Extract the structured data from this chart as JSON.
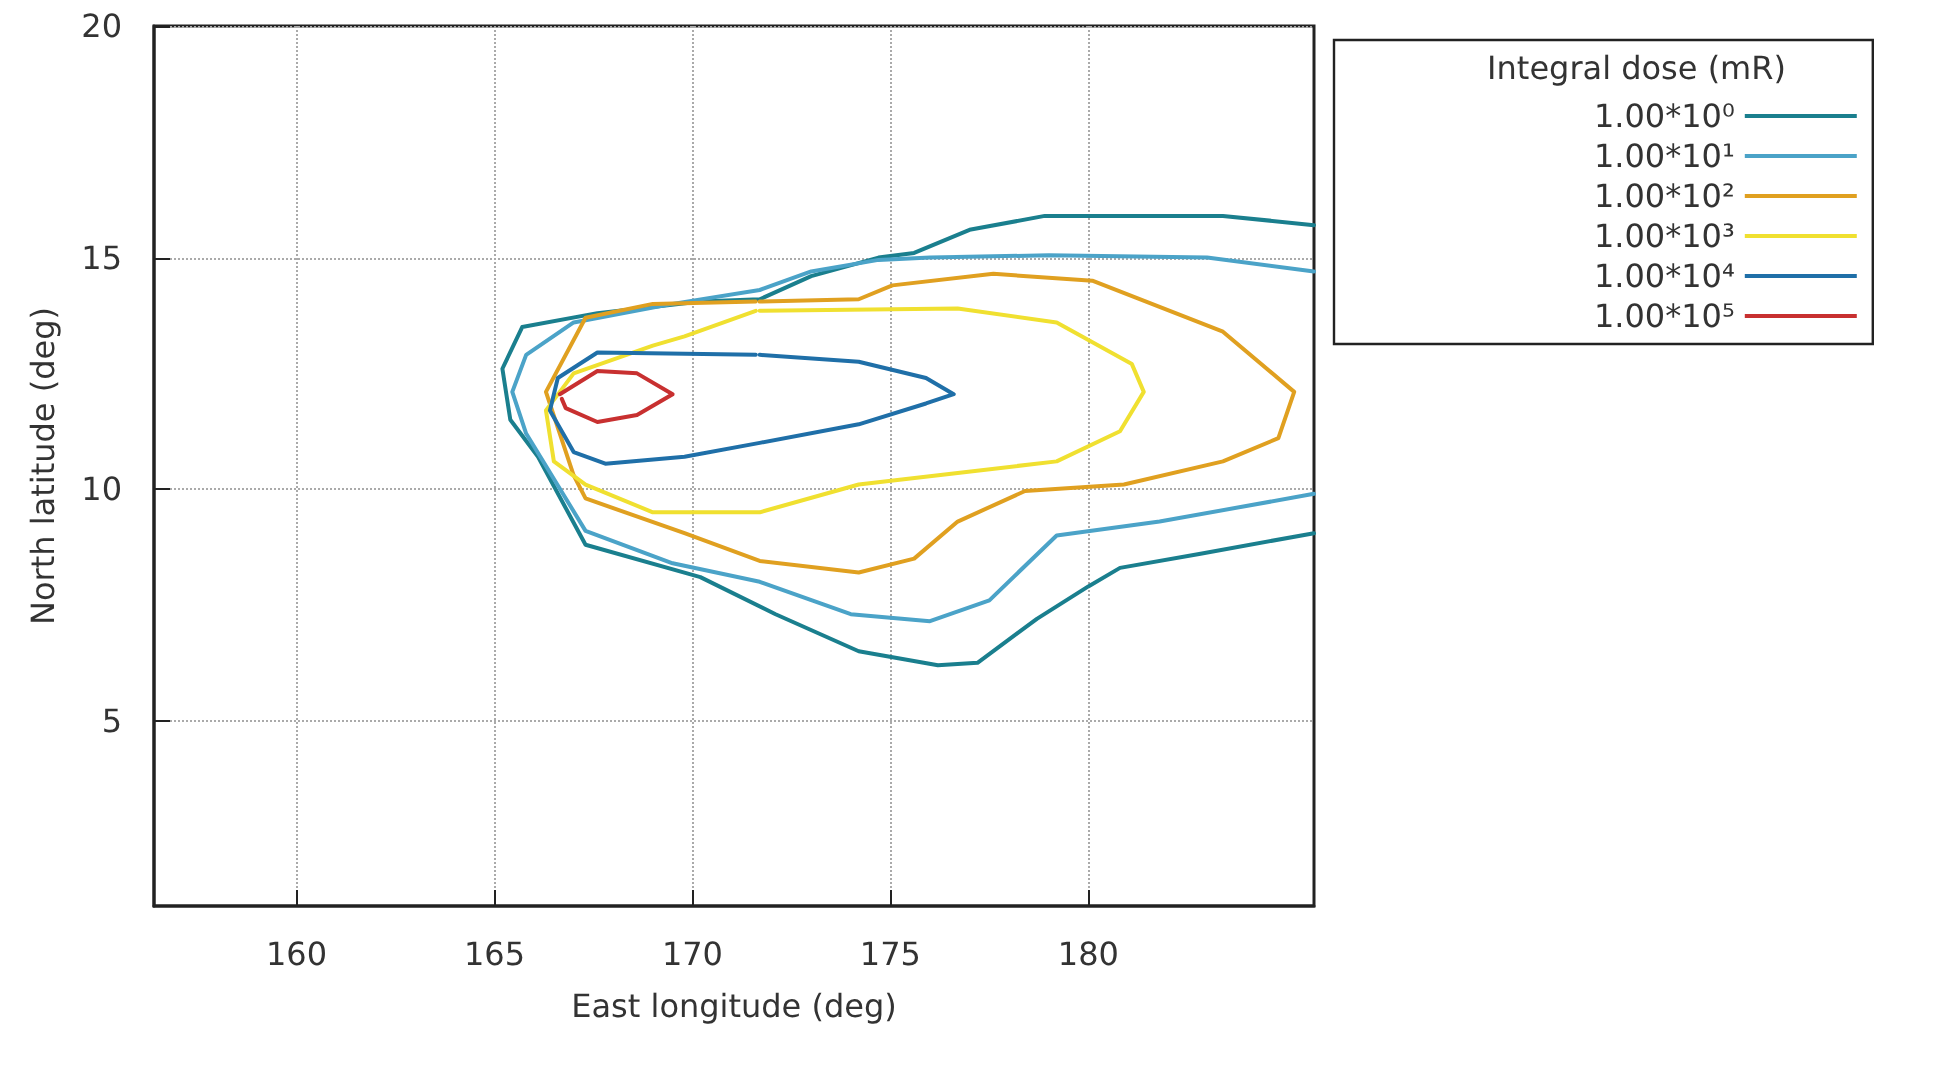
{
  "chart_data": {
    "type": "line",
    "xlabel": "East longitude (deg)",
    "ylabel": "North latitude (deg)",
    "legend_title": "Integral dose (mR)",
    "xlim": [
      156.4,
      185.7
    ],
    "xticks": [
      160,
      165,
      170,
      175,
      180
    ],
    "ylim": [
      1,
      20
    ],
    "yticks": [
      5,
      10,
      15,
      20
    ],
    "grid": true,
    "legend": "top right",
    "marker": "none",
    "line_style": "solid",
    "series": [
      {
        "name": "1.00*10⁰",
        "color": "#1a7f8e",
        "x": [
          185.7,
          183.4,
          178.9,
          177,
          175.6,
          174.7,
          173,
          171.7,
          170.2,
          167.6,
          165.7,
          165.2,
          165.4,
          166.1,
          167.3,
          170.2,
          172.1,
          174.2,
          176.2,
          177.2,
          178.7,
          180,
          180.8,
          182.8,
          185.7
        ],
        "values": [
          15.7,
          15.9,
          15.9,
          15.6,
          15.1,
          15.0,
          14.6,
          14.1,
          14.05,
          13.8,
          13.5,
          12.6,
          11.5,
          10.7,
          8.8,
          8.1,
          7.3,
          6.5,
          6.2,
          6.25,
          7.2,
          7.9,
          8.3,
          8.6,
          9.05
        ]
      },
      {
        "name": "1.00*10¹",
        "color": "#4ba3c8",
        "x": [
          185.7,
          183,
          179,
          176,
          174.7,
          173,
          171.7,
          169.5,
          167,
          165.8,
          165.45,
          165.8,
          167.3,
          169.5,
          171.7,
          174,
          176,
          177.5,
          179.2,
          181.8,
          185.7
        ],
        "values": [
          14.7,
          15.0,
          15.05,
          15.0,
          14.95,
          14.7,
          14.3,
          14.0,
          13.6,
          12.9,
          12.1,
          11.2,
          9.1,
          8.4,
          8.0,
          7.3,
          7.15,
          7.6,
          9.0,
          9.3,
          9.9
        ]
      },
      {
        "name": "1.00*10²",
        "color": "#e0a020",
        "x": [
          171.7,
          174.2,
          175.05,
          177.6,
          180.1,
          183.4,
          185.2,
          184.8,
          183.4,
          180.9,
          178.4,
          176.7,
          175.6,
          174.2,
          171.7,
          169.8,
          167.3,
          167,
          166.3,
          167.3,
          169,
          171.6
        ],
        "values": [
          14.05,
          14.1,
          14.4,
          14.65,
          14.5,
          13.4,
          12.1,
          11.1,
          10.6,
          10.1,
          9.96,
          9.3,
          8.5,
          8.2,
          8.45,
          9.05,
          9.8,
          10.3,
          12.1,
          13.7,
          14.0,
          14.05
        ]
      },
      {
        "name": "1.00*10³",
        "color": "#f0e030",
        "x": [
          171.7,
          176.7,
          179.2,
          181.1,
          181.4,
          180.8,
          179.2,
          176.7,
          174.2,
          171.7,
          169,
          167.3,
          166.5,
          166.3,
          167,
          169,
          169.8,
          171.6
        ],
        "values": [
          13.85,
          13.9,
          13.6,
          12.7,
          12.1,
          11.25,
          10.6,
          10.35,
          10.1,
          9.5,
          9.5,
          10.1,
          10.6,
          11.7,
          12.5,
          13.1,
          13.3,
          13.85
        ]
      },
      {
        "name": "1.00*10⁴",
        "color": "#1f6fa8",
        "x": [
          171.7,
          174.2,
          175.9,
          176.6,
          175.9,
          174.2,
          171.7,
          169.8,
          167.8,
          167,
          166.4,
          166.6,
          167.6,
          171.6
        ],
        "values": [
          12.9,
          12.75,
          12.4,
          12.05,
          11.85,
          11.4,
          11.0,
          10.7,
          10.55,
          10.8,
          11.7,
          12.4,
          12.95,
          12.9
        ]
      },
      {
        "name": "1.00*10⁵",
        "color": "#c83030",
        "x": [
          166.65,
          167.6,
          168.6,
          169.5,
          168.6,
          167.6,
          166.8,
          166.7
        ],
        "values": [
          12.05,
          12.55,
          12.5,
          12.05,
          11.6,
          11.45,
          11.75,
          11.95
        ]
      }
    ]
  }
}
